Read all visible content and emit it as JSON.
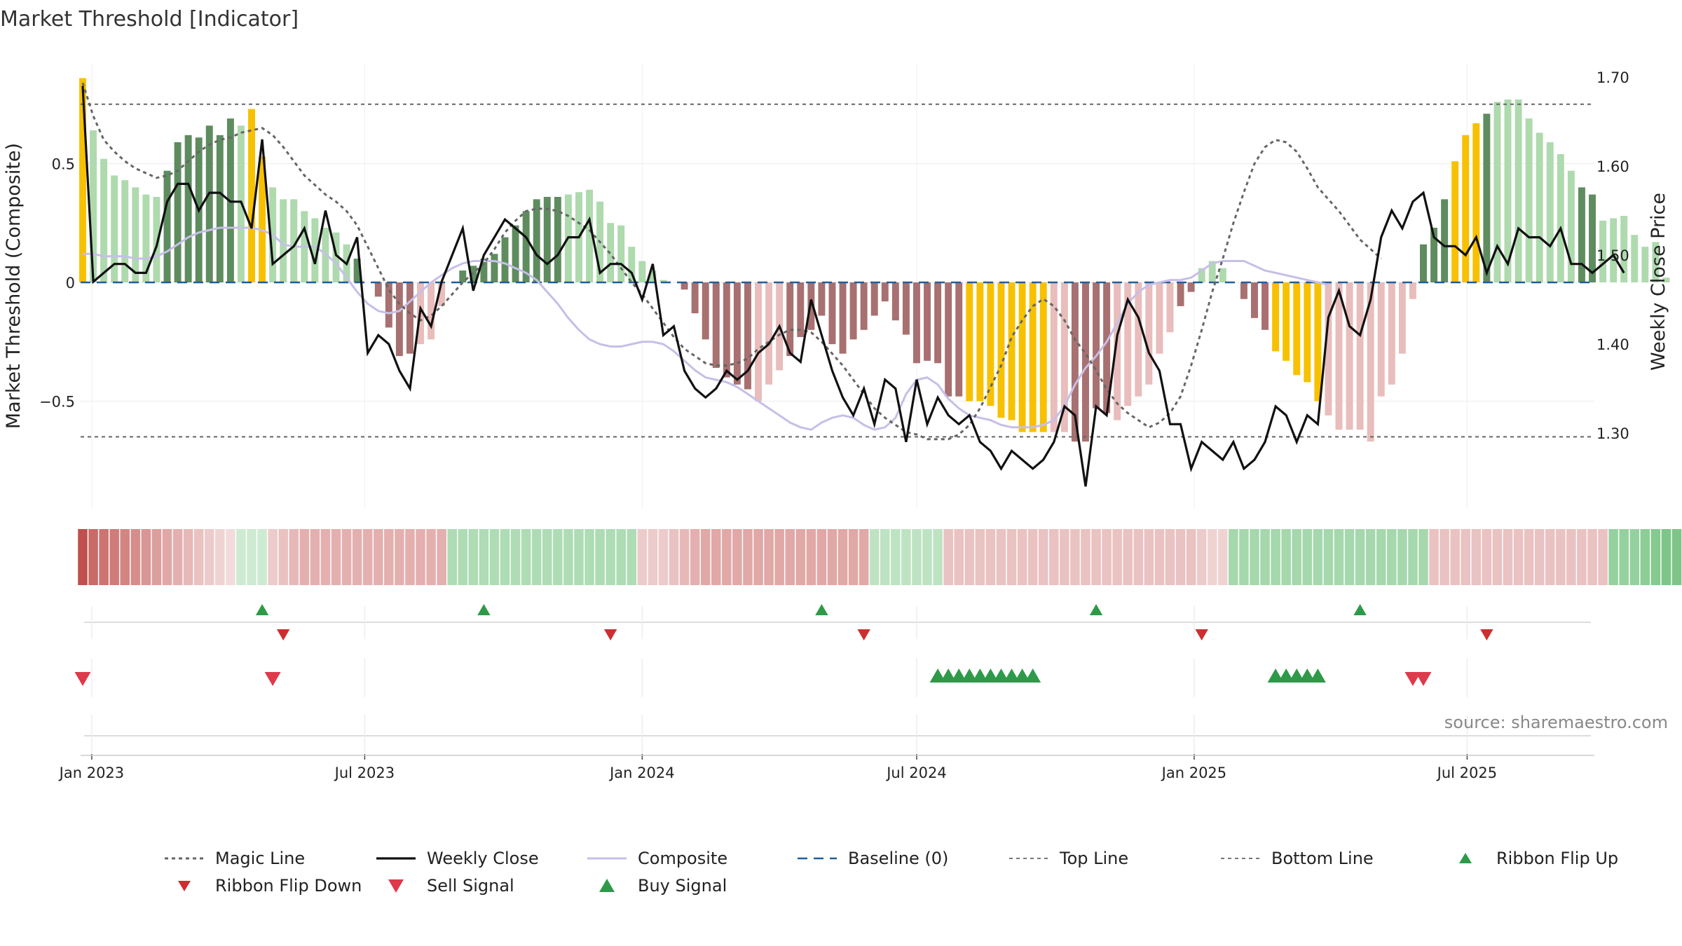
{
  "chart_data": {
    "type": "bar",
    "title": "Market Threshold [Indicator]",
    "ylabel_left": "Market Threshold (Composite)",
    "ylabel_right": "Weekly Close Price",
    "source": "source: sharemaestro.com",
    "left_axis": {
      "ticks": [
        0.5,
        0,
        -0.5
      ],
      "tick_labels": [
        "0.5",
        "0",
        "−0.5"
      ],
      "range": [
        -0.95,
        0.87
      ]
    },
    "right_axis": {
      "ticks": [
        1.7,
        1.6,
        1.5,
        1.4,
        1.3
      ],
      "tick_labels": [
        "1.70",
        "1.60",
        "1.50",
        "1.40",
        "1.30"
      ],
      "range": [
        1.22,
        1.72
      ]
    },
    "x_axis": {
      "start": "2022-12-26",
      "end": "2025-09-22",
      "ticks": [
        "2023-01-01",
        "2023-07-01",
        "2024-01-01",
        "2024-07-01",
        "2025-01-01",
        "2025-07-01"
      ],
      "tick_labels": [
        "Jan 2023",
        "Jul 2023",
        "Jan 2024",
        "Jul 2024",
        "Jan 2025",
        "Jul 2025"
      ]
    },
    "top_line": 0.75,
    "bottom_line": -0.65,
    "baseline": 0,
    "colors": {
      "bull_strong": "#5e8c5f",
      "bull_weak": "#aedaae",
      "bear_strong": "#a87070",
      "bear_weak": "#e8bdbb",
      "extreme": "#f7c100",
      "close": "#111111",
      "magic": "#666666",
      "composite": "#c6bfe7",
      "baseline": "#1f5f99",
      "flip_up": "#2e9a49",
      "flip_down": "#cc2f2f",
      "signal_buy": "#2e9a49",
      "signal_sell": "#dd3a4b"
    },
    "composite_bars": [
      0.86,
      0.64,
      0.52,
      0.45,
      0.43,
      0.4,
      0.37,
      0.36,
      0.47,
      0.59,
      0.62,
      0.61,
      0.66,
      0.62,
      0.69,
      0.66,
      0.73,
      0.53,
      0.4,
      0.35,
      0.35,
      0.3,
      0.27,
      0.23,
      0.21,
      0.16,
      0.1,
      0,
      -0.06,
      -0.19,
      -0.31,
      -0.3,
      -0.26,
      -0.24,
      -0.1,
      0,
      0.05,
      0.07,
      0.1,
      0.12,
      0.19,
      0.24,
      0.3,
      0.35,
      0.36,
      0.36,
      0.37,
      0.38,
      0.39,
      0.34,
      0.25,
      0.24,
      0.15,
      0.09,
      0.05,
      0.01,
      0,
      -0.03,
      -0.13,
      -0.24,
      -0.36,
      -0.4,
      -0.43,
      -0.45,
      -0.5,
      -0.43,
      -0.37,
      -0.31,
      -0.23,
      -0.2,
      -0.14,
      -0.26,
      -0.3,
      -0.24,
      -0.2,
      -0.14,
      -0.08,
      -0.16,
      -0.22,
      -0.34,
      -0.33,
      -0.34,
      -0.48,
      -0.48,
      -0.5,
      -0.5,
      -0.52,
      -0.57,
      -0.58,
      -0.63,
      -0.63,
      -0.63,
      -0.63,
      -0.63,
      -0.67,
      -0.67,
      -0.53,
      -0.55,
      -0.58,
      -0.52,
      -0.48,
      -0.43,
      -0.3,
      -0.21,
      -0.1,
      -0.04,
      0.06,
      0.09,
      0.06,
      0,
      -0.07,
      -0.15,
      -0.2,
      -0.29,
      -0.33,
      -0.39,
      -0.42,
      -0.5,
      -0.56,
      -0.62,
      -0.62,
      -0.62,
      -0.67,
      -0.48,
      -0.43,
      -0.3,
      -0.07,
      0.16,
      0.23,
      0.35,
      0.51,
      0.62,
      0.67,
      0.71,
      0.76,
      0.77,
      0.77,
      0.69,
      0.63,
      0.59,
      0.54,
      0.47,
      0.4,
      0.37,
      0.26,
      0.27,
      0.28,
      0.2,
      0.15,
      0.17,
      0.02,
      0,
      0.03,
      0
    ],
    "bar_tones": "ywwwwwwwssssssswyywwwwwwwwsbbbbbwwwssssssssssswwwwwbbbbbbbbbbbbbwwwbbbbbbbbbbbbbbbbbyyyyyyyywwbbbbwwsswwbbbbbbbbbyyyyywwwwwwwsssssyyyswwwwwwwwsswwwwww",
    "weekly_close": [
      1.69,
      1.47,
      1.48,
      1.49,
      1.49,
      1.48,
      1.48,
      1.51,
      1.56,
      1.58,
      1.58,
      1.55,
      1.57,
      1.57,
      1.56,
      1.56,
      1.53,
      1.63,
      1.49,
      1.5,
      1.51,
      1.53,
      1.49,
      1.55,
      1.5,
      1.49,
      1.52,
      1.39,
      1.41,
      1.4,
      1.37,
      1.35,
      1.44,
      1.42,
      1.47,
      1.5,
      1.53,
      1.46,
      1.5,
      1.52,
      1.54,
      1.53,
      1.52,
      1.5,
      1.49,
      1.5,
      1.52,
      1.52,
      1.54,
      1.48,
      1.49,
      1.49,
      1.48,
      1.45,
      1.49,
      1.41,
      1.42,
      1.37,
      1.35,
      1.34,
      1.35,
      1.37,
      1.36,
      1.37,
      1.39,
      1.4,
      1.42,
      1.39,
      1.38,
      1.45,
      1.41,
      1.37,
      1.34,
      1.32,
      1.35,
      1.31,
      1.36,
      1.35,
      1.29,
      1.36,
      1.31,
      1.34,
      1.32,
      1.31,
      1.32,
      1.29,
      1.28,
      1.26,
      1.28,
      1.27,
      1.26,
      1.27,
      1.29,
      1.33,
      1.32,
      1.24,
      1.33,
      1.32,
      1.41,
      1.45,
      1.43,
      1.39,
      1.37,
      1.31,
      1.31,
      1.26,
      1.29,
      1.28,
      1.27,
      1.29,
      1.26,
      1.27,
      1.29,
      1.33,
      1.32,
      1.29,
      1.32,
      1.31,
      1.43,
      1.46,
      1.42,
      1.41,
      1.45,
      1.52,
      1.55,
      1.53,
      1.56,
      1.57,
      1.52,
      1.51,
      1.51,
      1.5,
      1.52,
      1.48,
      1.51,
      1.49,
      1.53,
      1.52,
      1.52,
      1.51,
      1.53,
      1.49,
      1.49,
      1.48,
      1.49,
      1.5,
      1.48
    ],
    "magic_line": [
      0.84,
      0.7,
      0.6,
      0.55,
      0.51,
      0.48,
      0.46,
      0.44,
      0.45,
      0.47,
      0.51,
      0.55,
      0.58,
      0.6,
      0.61,
      0.63,
      0.64,
      0.65,
      0.62,
      0.57,
      0.51,
      0.45,
      0.41,
      0.37,
      0.34,
      0.3,
      0.24,
      0.15,
      0.06,
      -0.03,
      -0.09,
      -0.13,
      -0.16,
      -0.14,
      -0.1,
      -0.05,
      0,
      0.04,
      0.08,
      0.14,
      0.21,
      0.26,
      0.3,
      0.31,
      0.31,
      0.3,
      0.28,
      0.25,
      0.22,
      0.17,
      0.12,
      0.06,
      0,
      -0.05,
      -0.11,
      -0.17,
      -0.23,
      -0.28,
      -0.31,
      -0.34,
      -0.35,
      -0.35,
      -0.34,
      -0.32,
      -0.28,
      -0.25,
      -0.22,
      -0.2,
      -0.2,
      -0.21,
      -0.25,
      -0.3,
      -0.35,
      -0.41,
      -0.47,
      -0.53,
      -0.57,
      -0.6,
      -0.63,
      -0.64,
      -0.66,
      -0.66,
      -0.66,
      -0.64,
      -0.6,
      -0.53,
      -0.44,
      -0.35,
      -0.23,
      -0.16,
      -0.1,
      -0.07,
      -0.1,
      -0.16,
      -0.24,
      -0.3,
      -0.37,
      -0.45,
      -0.51,
      -0.55,
      -0.58,
      -0.61,
      -0.59,
      -0.55,
      -0.48,
      -0.35,
      -0.2,
      -0.04,
      0.1,
      0.25,
      0.38,
      0.5,
      0.57,
      0.6,
      0.59,
      0.55,
      0.48,
      0.4,
      0.35,
      0.3,
      0.24,
      0.18,
      0.14,
      0.1
    ],
    "composite_line": [
      0.12,
      0.12,
      0.11,
      0.11,
      0.11,
      0.1,
      0.1,
      0.11,
      0.13,
      0.16,
      0.19,
      0.21,
      0.22,
      0.23,
      0.23,
      0.23,
      0.23,
      0.22,
      0.2,
      0.16,
      0.15,
      0.15,
      0.15,
      0.12,
      0.08,
      0.02,
      -0.04,
      -0.09,
      -0.12,
      -0.13,
      -0.12,
      -0.08,
      -0.04,
      0,
      0.03,
      0.06,
      0.08,
      0.09,
      0.09,
      0.09,
      0.08,
      0.06,
      0.04,
      0.01,
      -0.04,
      -0.09,
      -0.15,
      -0.2,
      -0.24,
      -0.26,
      -0.27,
      -0.27,
      -0.26,
      -0.25,
      -0.25,
      -0.26,
      -0.29,
      -0.33,
      -0.37,
      -0.4,
      -0.41,
      -0.42,
      -0.44,
      -0.47,
      -0.5,
      -0.53,
      -0.56,
      -0.59,
      -0.61,
      -0.62,
      -0.59,
      -0.57,
      -0.56,
      -0.57,
      -0.6,
      -0.62,
      -0.61,
      -0.57,
      -0.47,
      -0.41,
      -0.4,
      -0.43,
      -0.49,
      -0.53,
      -0.56,
      -0.57,
      -0.58,
      -0.6,
      -0.61,
      -0.61,
      -0.61,
      -0.6,
      -0.58,
      -0.52,
      -0.43,
      -0.36,
      -0.31,
      -0.25,
      -0.17,
      -0.09,
      -0.04,
      -0.01,
      0,
      0.01,
      0.01,
      0.02,
      0.05,
      0.08,
      0.09,
      0.09,
      0.09,
      0.07,
      0.05,
      0.04,
      0.03,
      0.02,
      0.01,
      0,
      -0.01
    ],
    "ribbon_tones": [
      "bear",
      3,
      "bear",
      0.85,
      "bear",
      0.8,
      "bear",
      0.75,
      "bear",
      0.7,
      "bear",
      0.65,
      "bear",
      0.6,
      "bear",
      0.55,
      "bear",
      0.5,
      "bear",
      0.45,
      "bear",
      0.4,
      "bear",
      0.35,
      "bear",
      0.3,
      "bear",
      0.25,
      "bear",
      0.2,
      "bull",
      0.3,
      "bull",
      0.3,
      "bull",
      0.3,
      "bear",
      0.3,
      "bear",
      0.35,
      "bear",
      0.4,
      "bear",
      0.45,
      "bear",
      0.45,
      "bear",
      0.45,
      "bear",
      0.45,
      "bear",
      0.45,
      "bear",
      0.45,
      "bear",
      0.45,
      "bear",
      0.45,
      "bear",
      0.45,
      "bear",
      0.45,
      "bear",
      0.45,
      "bear",
      0.45,
      "bear",
      0.45,
      "bear",
      0.45,
      "bull",
      0.5,
      "bull",
      0.5,
      "bull",
      0.5,
      "bull",
      0.5,
      "bull",
      0.5,
      "bull",
      0.5,
      "bull",
      0.5,
      "bull",
      0.5,
      "bull",
      0.5,
      "bull",
      0.5,
      "bull",
      0.5,
      "bull",
      0.5,
      "bull",
      0.5,
      "bull",
      0.5,
      "bull",
      0.5,
      "bull",
      0.5,
      "bull",
      0.5,
      "bull",
      0.5,
      "bear",
      0.3,
      "bear",
      0.3,
      "bear",
      0.3,
      "bear",
      0.35,
      "bear",
      0.4,
      "bear",
      0.45,
      "bear",
      0.5,
      "bear",
      0.5,
      "bear",
      0.5,
      "bear",
      0.5,
      "bear",
      0.5,
      "bear",
      0.5,
      "bear",
      0.5,
      "bear",
      0.5,
      "bear",
      0.5,
      "bear",
      0.5,
      "bear",
      0.5,
      "bear",
      0.5,
      "bear",
      0.5,
      "bear",
      0.5,
      "bear",
      0.5,
      "bear",
      0.5,
      "bull",
      0.4,
      "bull",
      0.4,
      "bull",
      0.4,
      "bull",
      0.4,
      "bull",
      0.4,
      "bull",
      0.4,
      "bull",
      0.4,
      "bear",
      0.35,
      "bear",
      0.35,
      "bear",
      0.35,
      "bear",
      0.35,
      "bear",
      0.35,
      "bear",
      0.35,
      "bear",
      0.35,
      "bear",
      0.35,
      "bear",
      0.35,
      "bear",
      0.35,
      "bear",
      0.35,
      "bear",
      0.35,
      "bear",
      0.35,
      "bear",
      0.35,
      "bear",
      0.35,
      "bear",
      0.35,
      "bear",
      0.35,
      "bear",
      0.35,
      "bear",
      0.35,
      "bear",
      0.35,
      "bear",
      0.35,
      "bear",
      0.35,
      "bear",
      0.35,
      "bear",
      0.35,
      "bear",
      0.3,
      "bear",
      0.25,
      "bear",
      0.25,
      "bull",
      0.55,
      "bull",
      0.55,
      "bull",
      0.55,
      "bull",
      0.55,
      "bull",
      0.55,
      "bull",
      0.55,
      "bull",
      0.55,
      "bull",
      0.55,
      "bull",
      0.55,
      "bull",
      0.55,
      "bull",
      0.55,
      "bull",
      0.55,
      "bull",
      0.55,
      "bull",
      0.55,
      "bull",
      0.55,
      "bull",
      0.55,
      "bull",
      0.55,
      "bull",
      0.55,
      "bull",
      0.55,
      "bear",
      0.35,
      "bear",
      0.35,
      "bear",
      0.35,
      "bear",
      0.35,
      "bear",
      0.35,
      "bear",
      0.35,
      "bear",
      0.35,
      "bear",
      0.35,
      "bear",
      0.35,
      "bear",
      0.35,
      "bear",
      0.35,
      "bear",
      0.35,
      "bear",
      0.35,
      "bear",
      0.35,
      "bear",
      0.35,
      "bear",
      0.35,
      "bear",
      0.35,
      "bull",
      0.65,
      "bull",
      0.65,
      "bull",
      0.65,
      "bull",
      0.7,
      "bull",
      0.75,
      "bull",
      0.8,
      "bull",
      0.8,
      "bull",
      0.8,
      "bull",
      0.8,
      "bull",
      0.8,
      "bull",
      0.8,
      "bull",
      0.8,
      "bull",
      0.8,
      "bull",
      0.8,
      "bull",
      0.8,
      "bull",
      0.8,
      "bull",
      0.8,
      "bull",
      0.8,
      "bull",
      0.8,
      "bull",
      0.8,
      "bull",
      0.8,
      "bull",
      0.8,
      "bull",
      0.8,
      "bull",
      0.8,
      "bull",
      0.8,
      "bull",
      0.8,
      "bear",
      0.4,
      "bear",
      0.4,
      "bear",
      0.4,
      "bear",
      0.4,
      "bear",
      0.4,
      "bear",
      0.4,
      "bear",
      0.4,
      "bear",
      0.4,
      "bear",
      0.4,
      "bear",
      0.4,
      "bear",
      0.4,
      "bear",
      0.4,
      "bear",
      0.4,
      "bear",
      0.4,
      "bear",
      0.4,
      "bear",
      0.4
    ],
    "ribbon_flip_up": [
      "2023-04-24",
      "2023-09-18",
      "2024-04-29",
      "2024-10-28",
      "2025-04-21"
    ],
    "ribbon_flip_down": [
      "2023-05-08",
      "2023-12-11",
      "2024-05-27",
      "2025-01-06",
      "2025-07-14"
    ],
    "buy_signal": [
      "2024-07-15",
      "2024-07-22",
      "2024-07-29",
      "2024-08-05",
      "2024-08-12",
      "2024-08-19",
      "2024-08-26",
      "2024-09-02",
      "2024-09-09",
      "2024-09-16",
      "2025-02-24",
      "2025-03-03",
      "2025-03-10",
      "2025-03-17",
      "2025-03-24"
    ],
    "sell_signal": [
      "2022-12-26",
      "2023-05-01",
      "2025-05-26",
      "2025-06-02"
    ],
    "legend": [
      {
        "key": "magic",
        "label": "Magic Line"
      },
      {
        "key": "close",
        "label": "Weekly Close"
      },
      {
        "key": "composite",
        "label": "Composite"
      },
      {
        "key": "baseline",
        "label": "Baseline (0)"
      },
      {
        "key": "top",
        "label": "Top Line"
      },
      {
        "key": "bottom",
        "label": "Bottom Line"
      },
      {
        "key": "flip_up",
        "label": "Ribbon Flip Up"
      },
      {
        "key": "flip_down",
        "label": "Ribbon Flip Down"
      },
      {
        "key": "sell",
        "label": "Sell Signal"
      },
      {
        "key": "buy",
        "label": "Buy Signal"
      }
    ],
    "legend_placement": "bottom"
  }
}
